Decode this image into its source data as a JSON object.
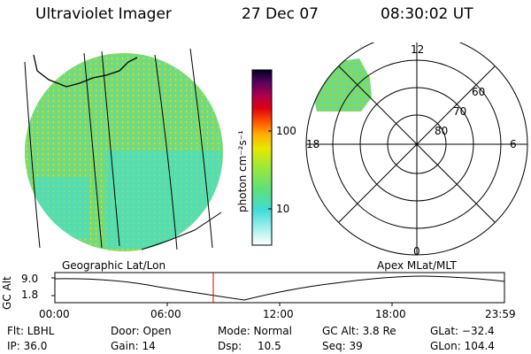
{
  "header": {
    "instrument": "Ultraviolet Imager",
    "date": "27 Dec 07",
    "time": "08:30:02 UT"
  },
  "colorbar": {
    "label": "photon cm⁻²s⁻¹",
    "ticks": [
      "100",
      "10"
    ]
  },
  "polar_plot": {
    "mlt_labels": [
      "12",
      "18",
      "6",
      "0"
    ],
    "lat_labels": [
      "60",
      "70",
      "80"
    ]
  },
  "map_labels": {
    "left": "Geographic Lat/Lon",
    "right": "Apex MLat/MLT"
  },
  "altitude_plot": {
    "axis_label": "GC Alt",
    "y_ticks": [
      "9.0",
      "1.8"
    ],
    "x_ticks": [
      "00:00",
      "06:00",
      "12:00",
      "18:00",
      "23:59"
    ]
  },
  "status": {
    "flt": "Flt: LBHL",
    "door": "Door: Open",
    "mode": "Mode: Normal",
    "gc_alt": "GC Alt: 3.8 Re",
    "glat": "GLat: −32.4",
    "ip": "IP: 36.0",
    "gain": "Gain: 14",
    "dsp": "Dsp:",
    "dsp_value": "10.5",
    "seq": "Seq: 39",
    "glon": "GLon: 104.4"
  },
  "colors": {
    "image_main": "#7fd86a",
    "image_low": "#3fe0d8",
    "marker": "#e00000"
  }
}
